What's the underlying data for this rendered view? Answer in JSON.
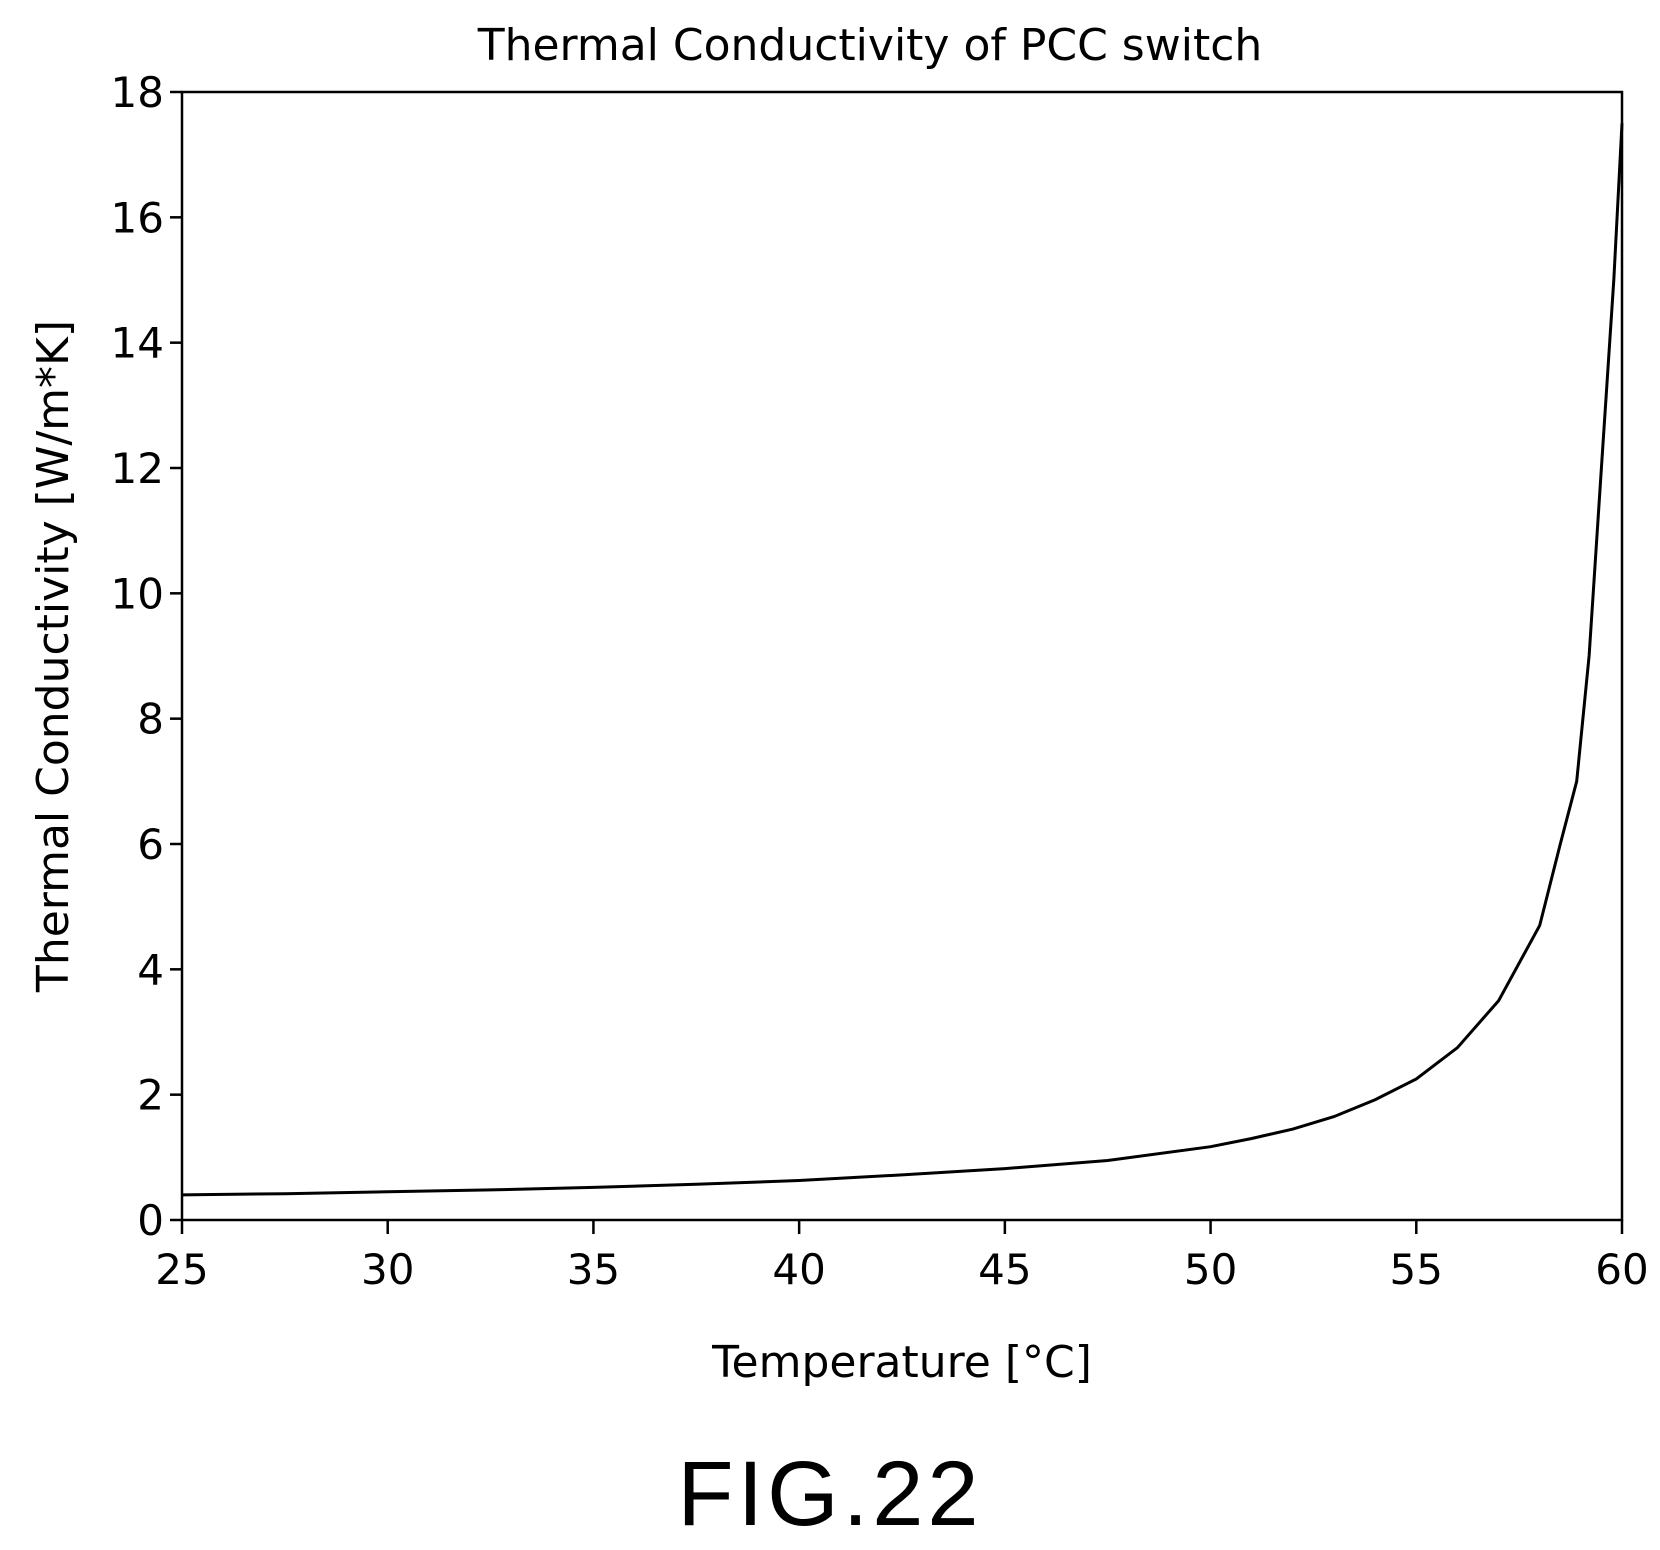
{
  "figure": {
    "caption": "FIG.22"
  },
  "chart_data": {
    "type": "line",
    "title": "Thermal Conductivity of PCC switch",
    "xlabel": "Temperature [°C]",
    "ylabel": "Thermal Conductivity [W/m*K]",
    "xlim": [
      25,
      60
    ],
    "ylim": [
      0,
      18
    ],
    "x_ticks": [
      25,
      30,
      35,
      40,
      45,
      50,
      55,
      60
    ],
    "y_ticks": [
      0,
      2,
      4,
      6,
      8,
      10,
      12,
      14,
      16,
      18
    ],
    "grid": false,
    "legend": "none",
    "line_color": "#000000",
    "series": [
      {
        "x": [
          25,
          27.5,
          30,
          32.5,
          35,
          37.5,
          40,
          42.5,
          45,
          47.5,
          50,
          51,
          52,
          53,
          54,
          55,
          56,
          57,
          58,
          58.5,
          58.9,
          59.2,
          59.5,
          59.8,
          60
        ],
        "y": [
          0.4,
          0.42,
          0.45,
          0.48,
          0.52,
          0.57,
          0.63,
          0.72,
          0.82,
          0.95,
          1.17,
          1.3,
          1.45,
          1.65,
          1.92,
          2.25,
          2.75,
          3.5,
          4.7,
          6.0,
          7.0,
          9.0,
          12.0,
          15.0,
          17.5
        ]
      }
    ]
  }
}
